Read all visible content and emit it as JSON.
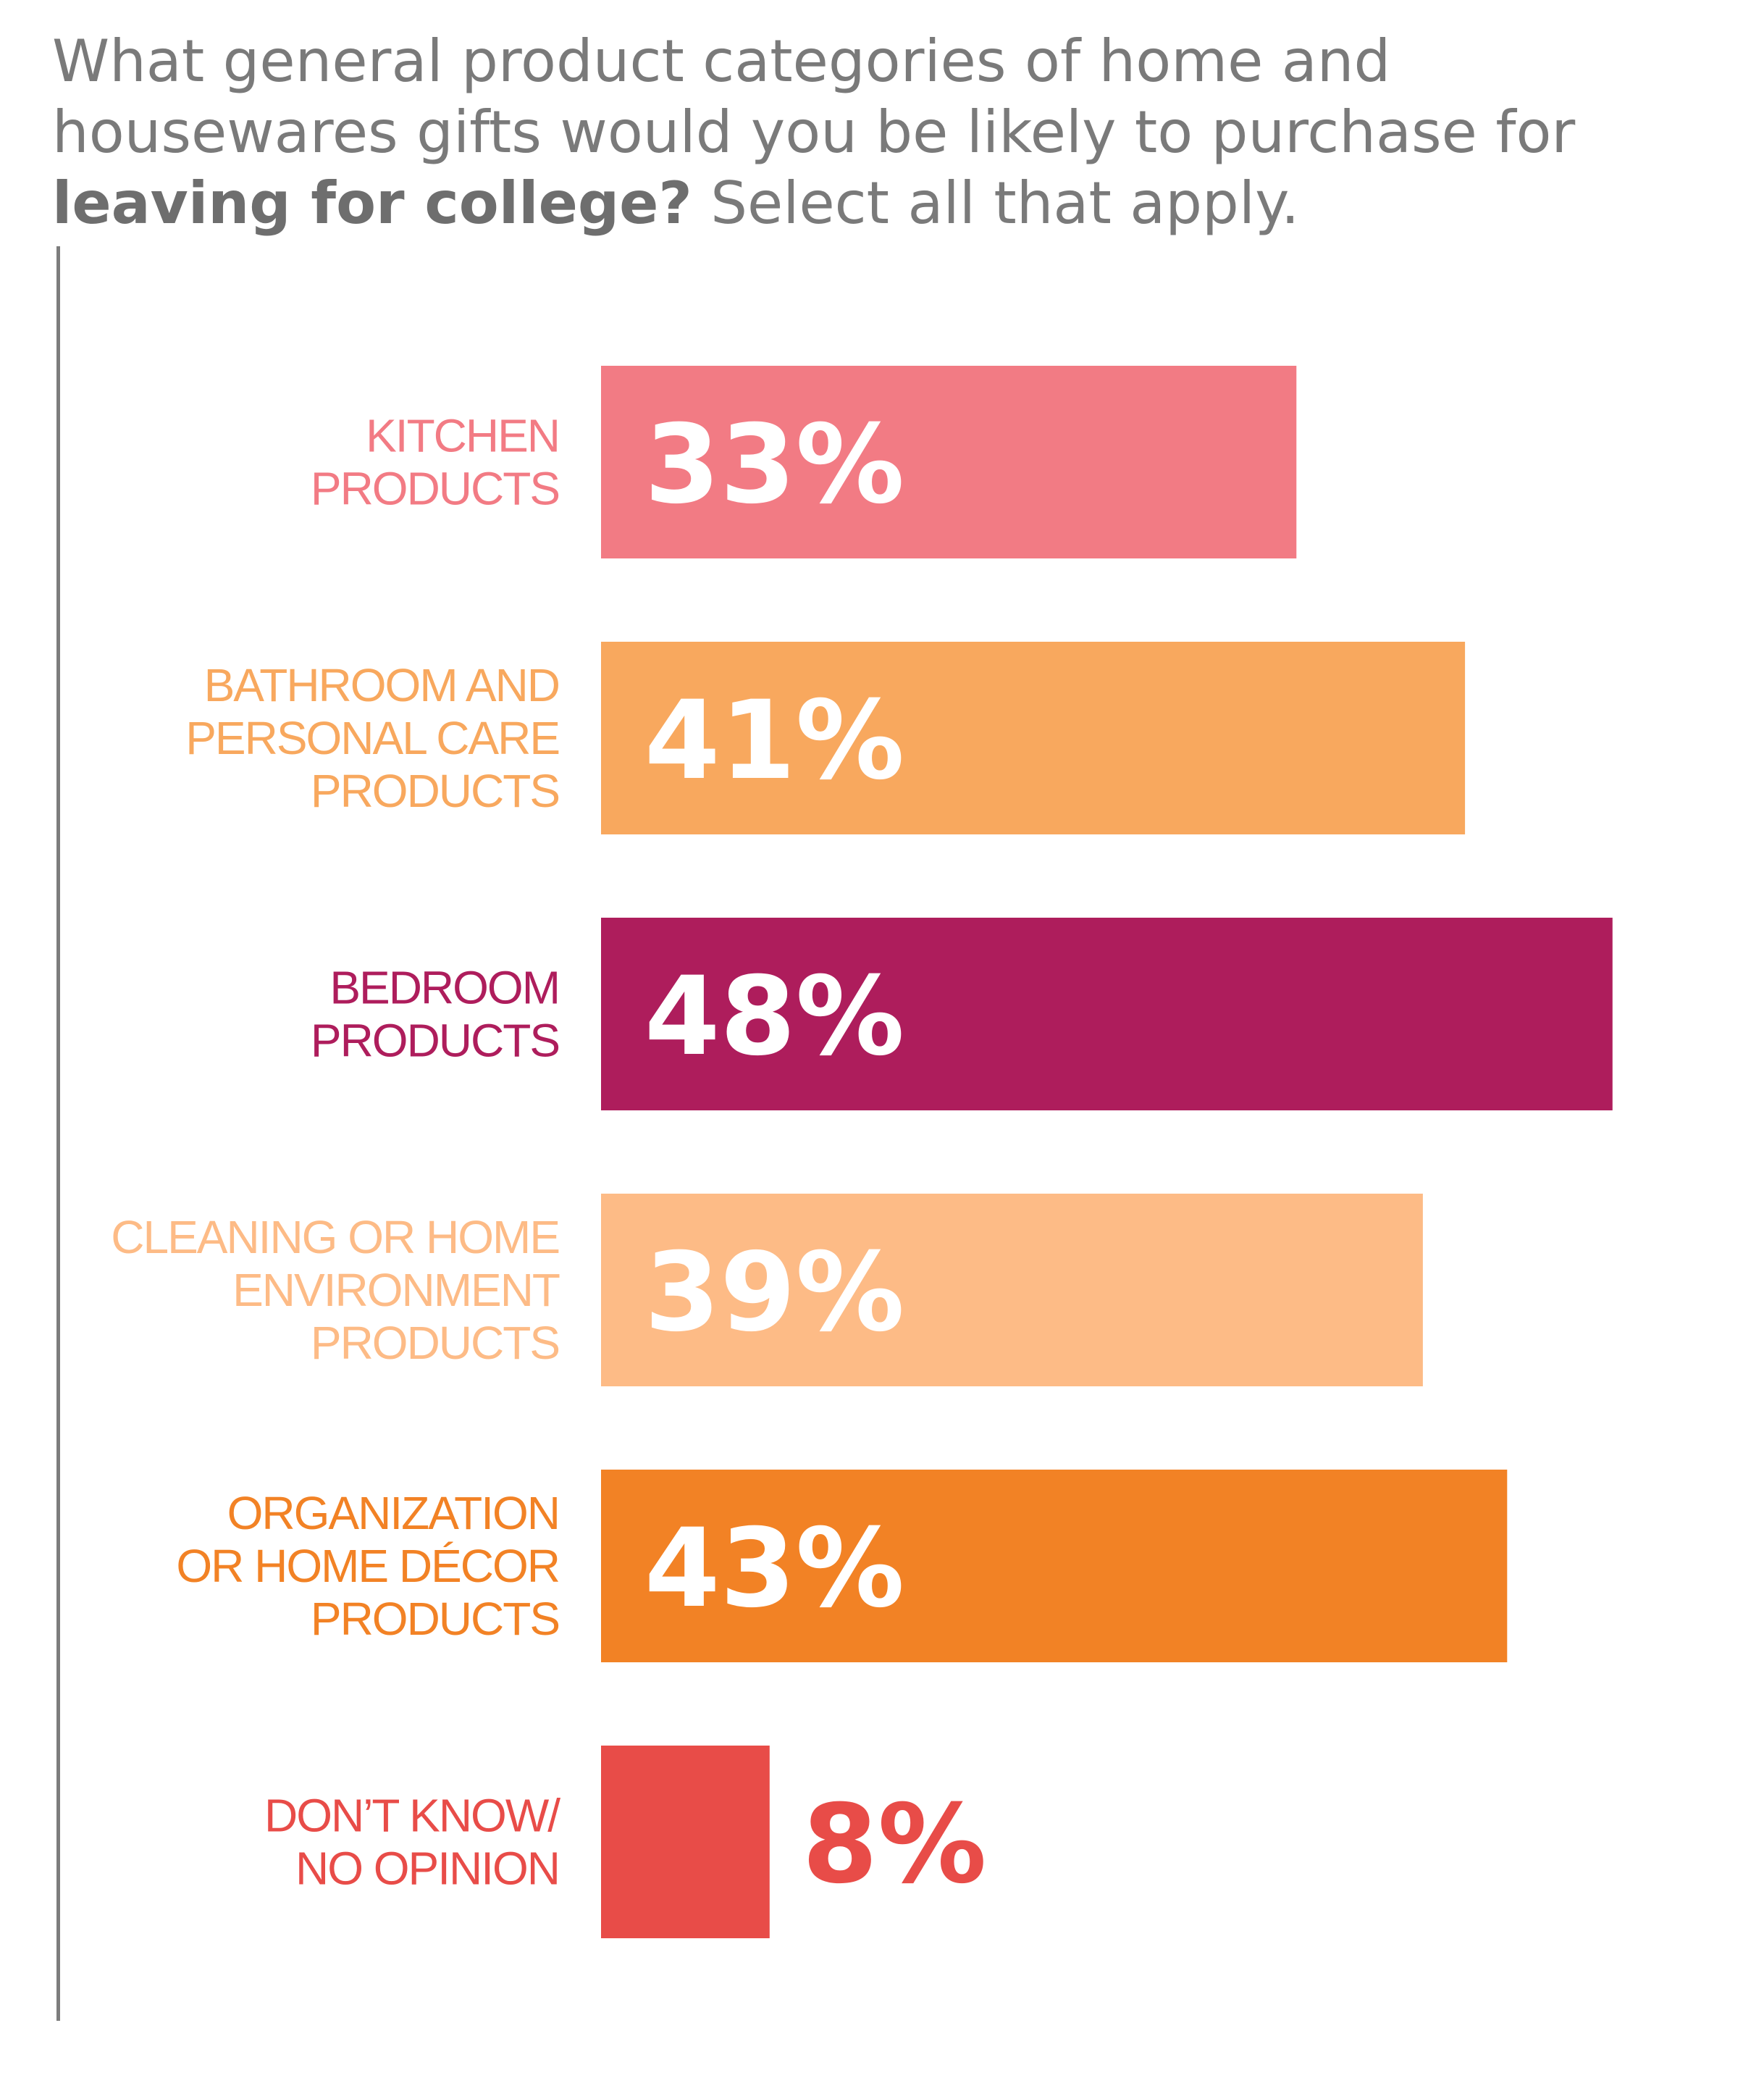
{
  "title": {
    "part1": "What general product categories of home and housewares gifts would you be likely to purchase for ",
    "bold": "leaving for college?",
    "part2": " Select all that apply."
  },
  "chart_data": {
    "type": "bar",
    "orientation": "horizontal",
    "categories": [
      [
        "KITCHEN",
        "PRODUCTS"
      ],
      [
        "BATHROOM AND",
        "PERSONAL CARE",
        "PRODUCTS"
      ],
      [
        "BEDROOM",
        "PRODUCTS"
      ],
      [
        "CLEANING OR HOME",
        "ENVIRONMENT",
        "PRODUCTS"
      ],
      [
        "ORGANIZATION",
        "OR HOME DÉCOR",
        "PRODUCTS"
      ],
      [
        "DON’T KNOW/",
        "NO OPINION"
      ]
    ],
    "values": [
      33,
      41,
      48,
      39,
      43,
      8
    ],
    "value_labels": [
      "33%",
      "41%",
      "48%",
      "39%",
      "43%",
      "8%"
    ],
    "colors": [
      "#f27b84",
      "#f8a85e",
      "#ae1d5c",
      "#fdbb86",
      "#f28225",
      "#e84c48"
    ],
    "value_label_colors": [
      "#ffffff",
      "#ffffff",
      "#ffffff",
      "#ffffff",
      "#ffffff",
      "#e84c48"
    ],
    "unit": "%",
    "grid": false,
    "legend": "none"
  }
}
